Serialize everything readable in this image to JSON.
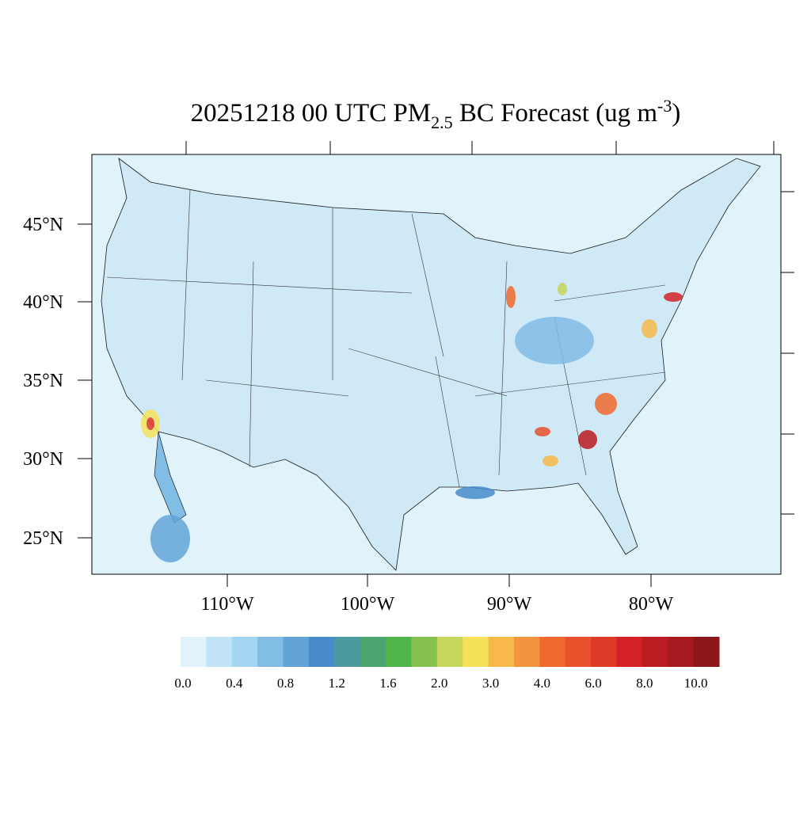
{
  "title": {
    "main": "20251218 00 UTC PM",
    "subscript": "2.5",
    "middle": " BC Forecast (ug m",
    "superscript": "-3",
    "end": ")"
  },
  "lat_labels": [
    "45°N",
    "40°N",
    "35°N",
    "30°N",
    "25°N"
  ],
  "lon_labels": [
    "110°W",
    "100°W",
    "90°W",
    "80°W"
  ],
  "colorbar": {
    "colors": [
      "#e0f3fb",
      "#c0e4f6",
      "#a2d6f2",
      "#82bde6",
      "#63a4d8",
      "#478bca",
      "#4a9aa0",
      "#4aa56e",
      "#4fb548",
      "#85c24e",
      "#c6d65b",
      "#f5e25a",
      "#f6b94a",
      "#f4943e",
      "#f06a2f",
      "#e8512b",
      "#df3a27",
      "#d42127",
      "#bb1c22",
      "#a6191f",
      "#8d161b"
    ],
    "ticks": [
      {
        "value": 0,
        "label": "0.0"
      },
      {
        "value": 0.4,
        "label": "0.4"
      },
      {
        "value": 0.8,
        "label": "0.8"
      },
      {
        "value": 1.2,
        "label": "1.2"
      },
      {
        "value": 1.6,
        "label": "1.6"
      },
      {
        "value": 2,
        "label": "2.0"
      },
      {
        "value": 3,
        "label": "3.0"
      },
      {
        "value": 4,
        "label": "4.0"
      },
      {
        "value": 6,
        "label": "6.0"
      },
      {
        "value": 8,
        "label": "8.0"
      },
      {
        "value": 10,
        "label": "10.0"
      }
    ]
  }
}
